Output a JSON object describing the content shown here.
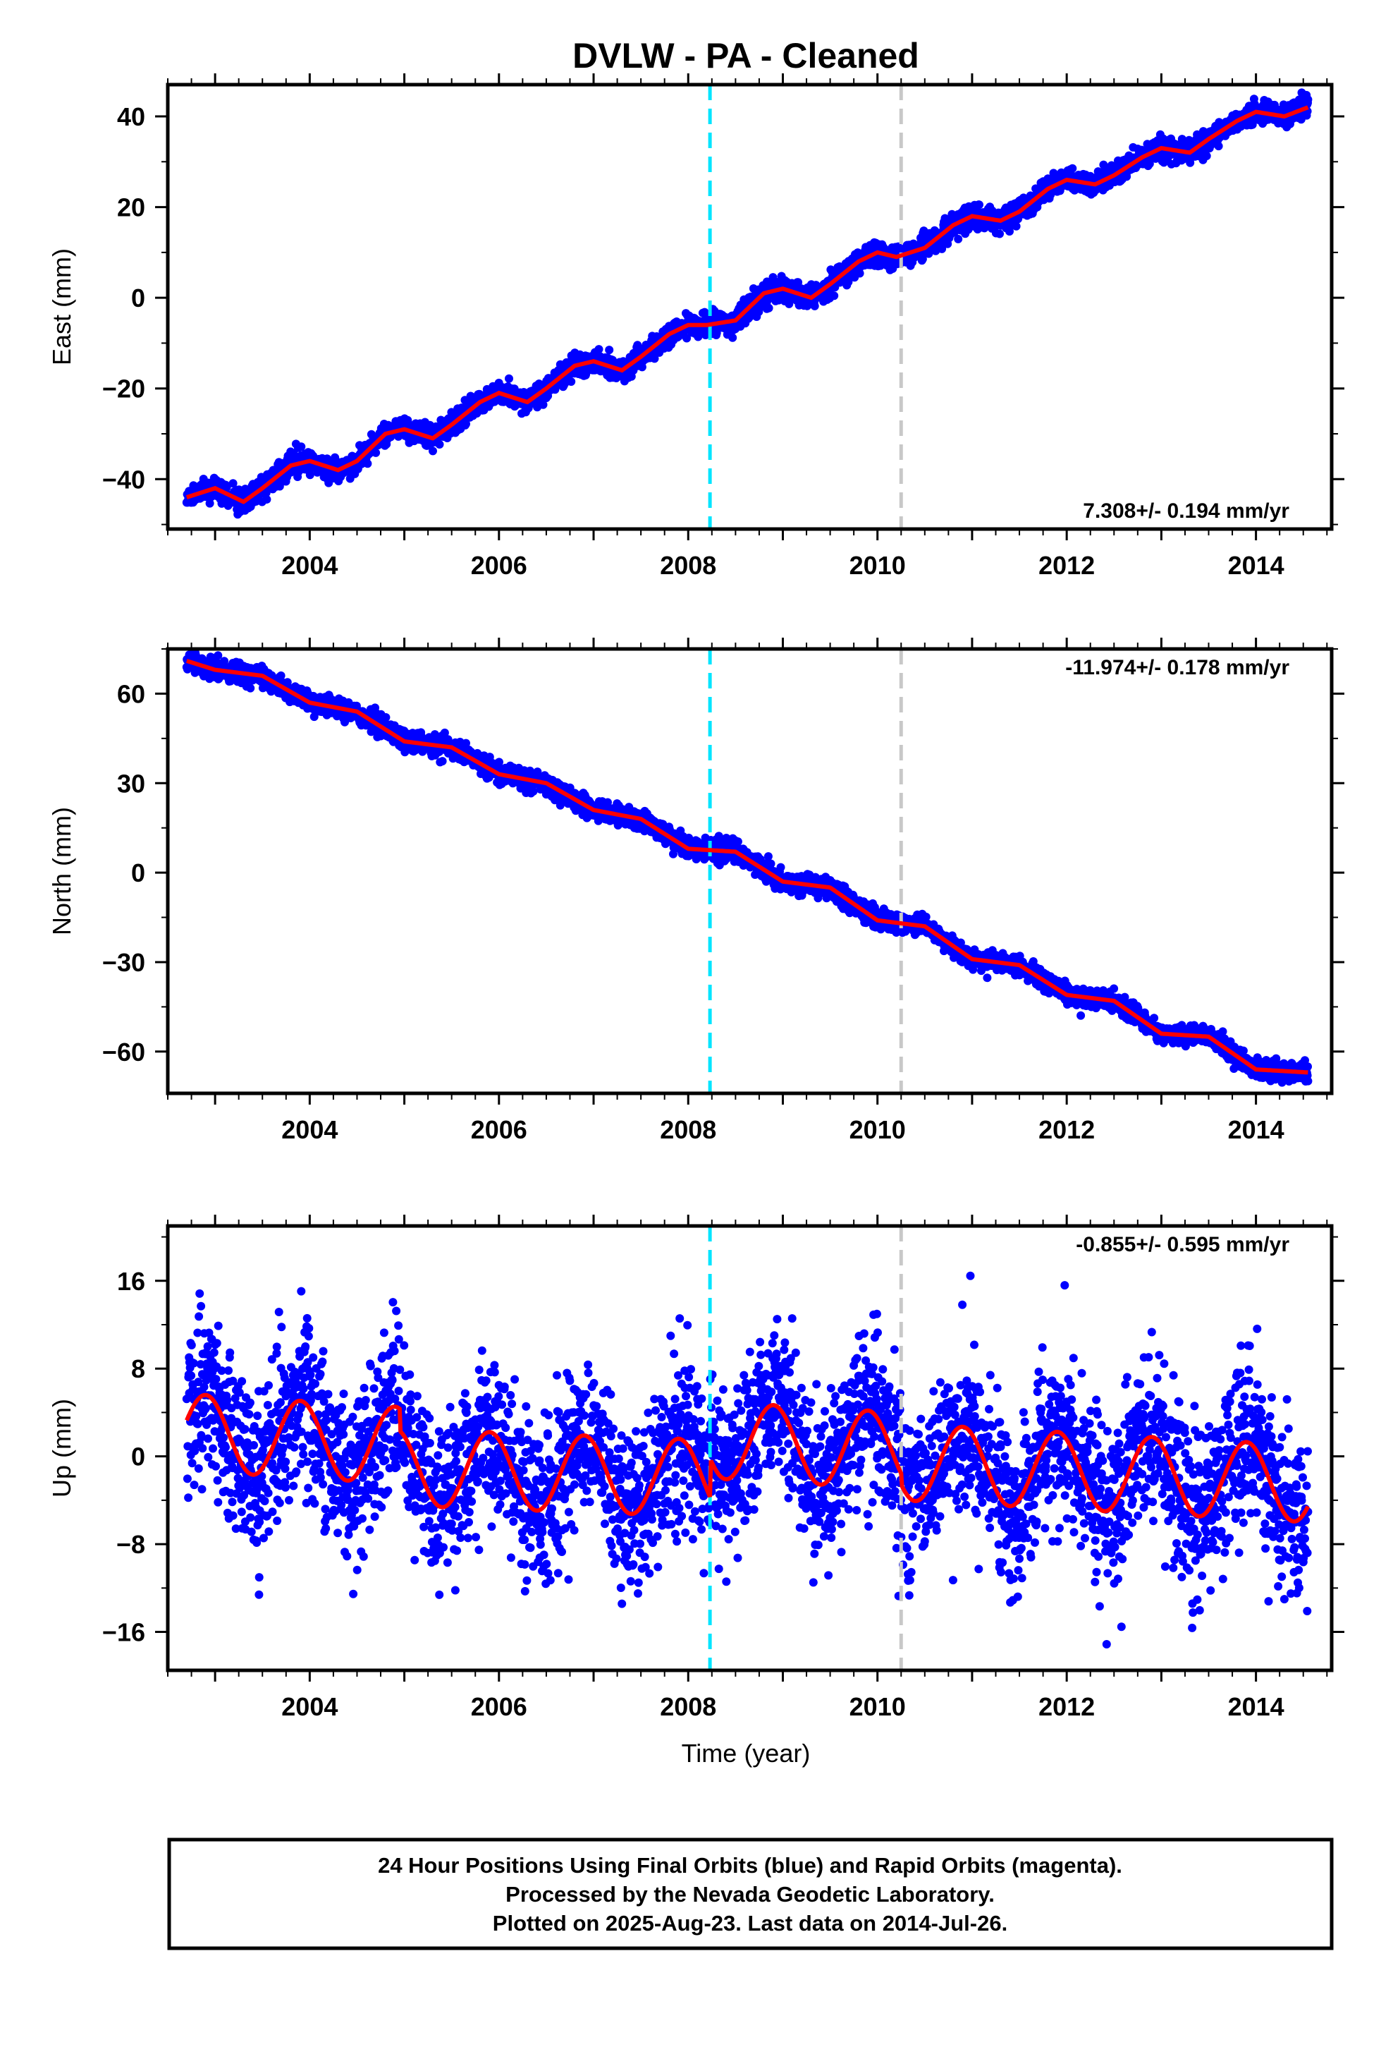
{
  "title": "DVLW  - PA - Cleaned",
  "xlabel": "Time (year)",
  "colors": {
    "data": "#0000ff",
    "fit": "#ff0000",
    "marker_rapid": "#00e5ff",
    "marker_gray": "#c8c8c8"
  },
  "footer": {
    "line1": "24 Hour Positions Using Final Orbits (blue) and Rapid Orbits (magenta).",
    "line2": "Processed by the Nevada Geodetic Laboratory.",
    "line3": "Plotted on 2025-Aug-23. Last data on 2014-Jul-26."
  },
  "chart_data": [
    {
      "type": "scatter",
      "panel": "east",
      "ylabel": "East (mm)",
      "rate": "7.308+/- 0.194 mm/yr",
      "xlim": [
        2002.5,
        2014.8
      ],
      "ylim": [
        -51,
        47
      ],
      "xticks": [
        2004,
        2006,
        2008,
        2010,
        2012,
        2014
      ],
      "yticks": [
        -40,
        -20,
        0,
        20,
        40
      ],
      "vlines": [
        2008.23,
        2010.25
      ],
      "fit": {
        "x": [
          2002.7,
          2003.0,
          2003.3,
          2003.5,
          2003.8,
          2004.0,
          2004.3,
          2004.5,
          2004.8,
          2005.0,
          2005.3,
          2005.5,
          2005.8,
          2006.0,
          2006.3,
          2006.5,
          2006.8,
          2007.0,
          2007.3,
          2007.5,
          2007.8,
          2008.0,
          2008.2,
          2008.5,
          2008.8,
          2009.0,
          2009.3,
          2009.5,
          2009.8,
          2010.0,
          2010.2,
          2010.5,
          2010.8,
          2011.0,
          2011.3,
          2011.5,
          2011.8,
          2012.0,
          2012.3,
          2012.5,
          2012.8,
          2013.0,
          2013.3,
          2013.5,
          2013.8,
          2014.0,
          2014.3,
          2014.55
        ],
        "y": [
          -44,
          -42,
          -45,
          -42,
          -37,
          -36,
          -38,
          -36,
          -30,
          -29,
          -31,
          -28,
          -23,
          -21,
          -23,
          -20,
          -15,
          -14,
          -16,
          -13,
          -8,
          -6,
          -6,
          -5,
          1,
          2,
          0,
          3,
          8,
          10,
          9,
          11,
          16,
          18,
          17,
          19,
          24,
          26,
          25,
          27,
          31,
          33,
          32,
          35,
          39,
          41,
          40,
          42
        ]
      }
    },
    {
      "type": "scatter",
      "panel": "north",
      "ylabel": "North (mm)",
      "rate": "-11.974+/- 0.178 mm/yr",
      "xlim": [
        2002.5,
        2014.8
      ],
      "ylim": [
        -74,
        75
      ],
      "xticks": [
        2004,
        2006,
        2008,
        2010,
        2012,
        2014
      ],
      "yticks": [
        -60,
        -30,
        0,
        30,
        60
      ],
      "vlines": [
        2008.23,
        2010.25
      ],
      "fit": {
        "x": [
          2002.7,
          2003.0,
          2003.5,
          2004.0,
          2004.5,
          2005.0,
          2005.5,
          2006.0,
          2006.5,
          2007.0,
          2007.5,
          2008.0,
          2008.5,
          2009.0,
          2009.5,
          2010.0,
          2010.5,
          2011.0,
          2011.5,
          2012.0,
          2012.5,
          2013.0,
          2013.5,
          2014.0,
          2014.55
        ],
        "y": [
          71,
          68,
          66,
          57,
          54,
          44,
          42,
          33,
          30,
          21,
          18,
          8,
          7,
          -3,
          -5,
          -16,
          -18,
          -29,
          -31,
          -41,
          -43,
          -54,
          -55,
          -66,
          -67
        ]
      }
    },
    {
      "type": "scatter",
      "panel": "up",
      "ylabel": "Up (mm)",
      "rate": "-0.855+/- 0.595 mm/yr",
      "xlim": [
        2002.5,
        2014.8
      ],
      "ylim": [
        -19.5,
        21
      ],
      "xticks": [
        2004,
        2006,
        2008,
        2010,
        2012,
        2014
      ],
      "yticks": [
        -16,
        -8,
        0,
        8,
        16
      ],
      "vlines": [
        2008.23,
        2010.25
      ],
      "fit": {
        "amp": 3.5,
        "phase_year": 2002.9,
        "segments": [
          {
            "x0": 2002.7,
            "x1": 2004.95,
            "y0": 2.2,
            "y1": 1.0
          },
          {
            "x0": 2004.95,
            "x1": 2008.23,
            "y0": -1.0,
            "y1": -2.0
          },
          {
            "x0": 2008.23,
            "x1": 2010.25,
            "y0": 1.5,
            "y1": 0.5
          },
          {
            "x0": 2010.25,
            "x1": 2014.55,
            "y0": -0.5,
            "y1": -2.5
          }
        ]
      }
    }
  ]
}
